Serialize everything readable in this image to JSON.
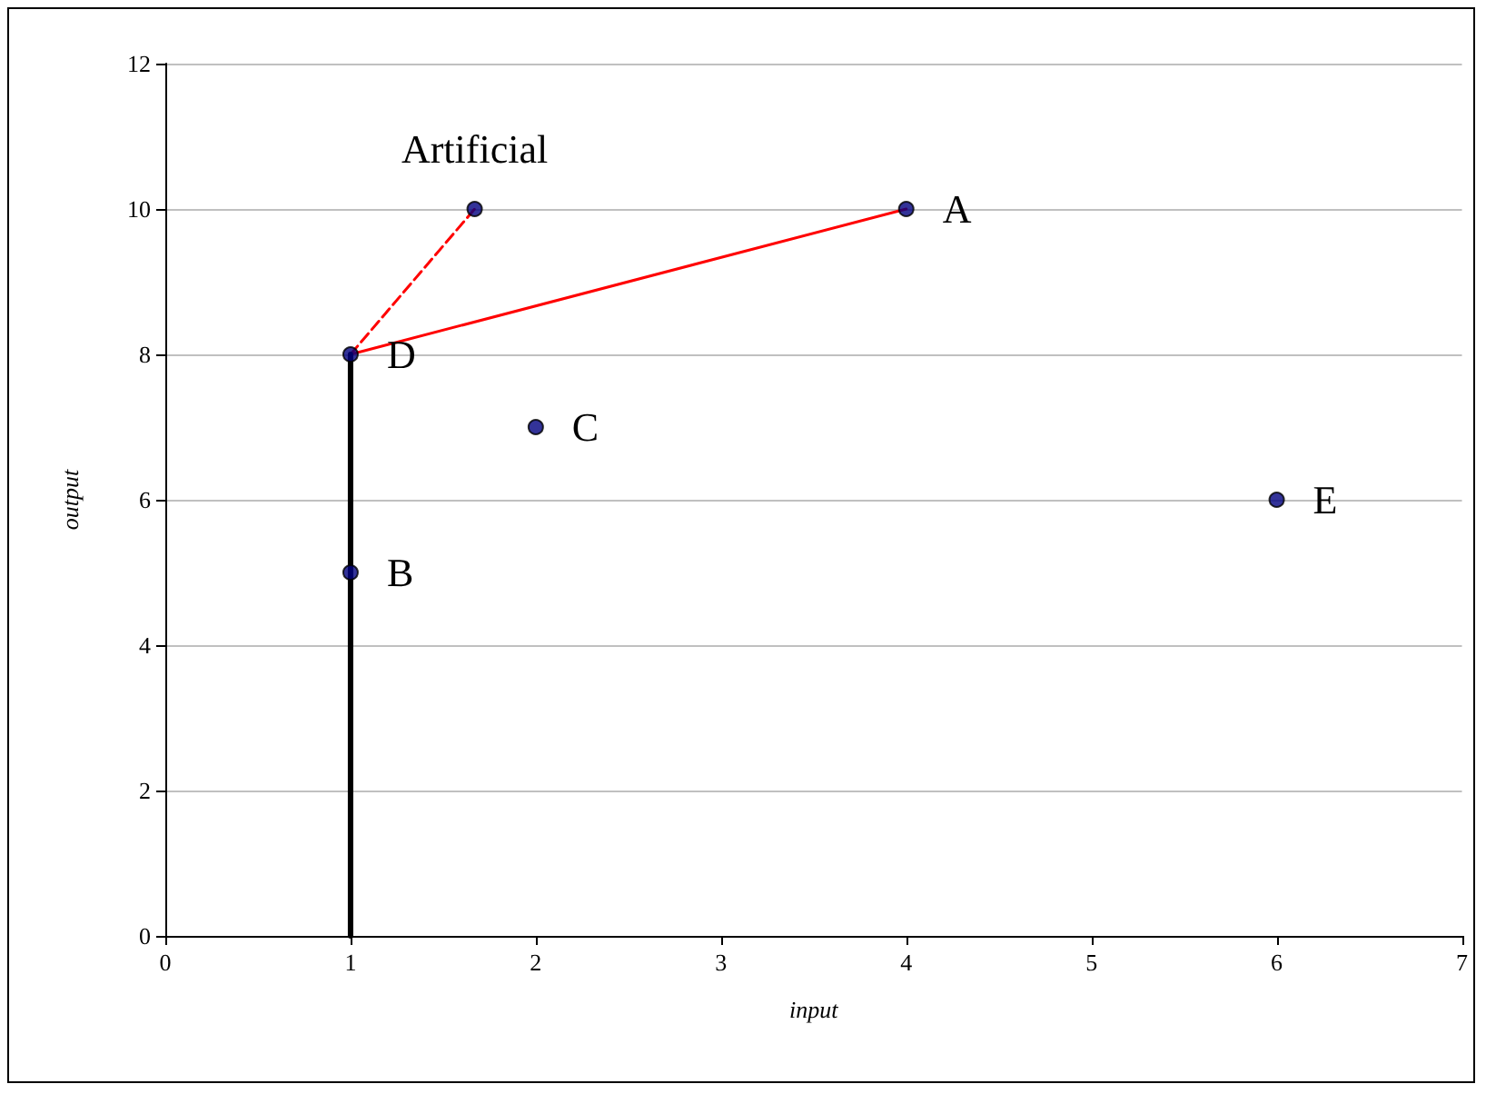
{
  "chart_data": {
    "type": "scatter",
    "xlabel": "input",
    "ylabel": "output",
    "series": [
      {
        "color": "#000080",
        "x": [
          1,
          1,
          2,
          4,
          6,
          1.67
        ],
        "values": [
          8,
          5,
          7,
          10,
          6,
          10
        ],
        "marker": "circle"
      },
      {
        "type": "line",
        "color": "#ff0000",
        "x": [
          1,
          4
        ],
        "values": [
          8,
          10
        ],
        "line_style": "solid",
        "marker": "none"
      },
      {
        "type": "line",
        "color": "#ff0000",
        "x": [
          1,
          1.67
        ],
        "values": [
          8,
          10
        ],
        "line_style": "dashed",
        "marker": "none"
      },
      {
        "type": "line",
        "color": "#000000",
        "x": [
          1,
          1
        ],
        "values": [
          0,
          8
        ],
        "line_style": "solid",
        "marker": "none"
      }
    ],
    "annotations": [
      {
        "text": "A",
        "x": 4,
        "y": 10
      },
      {
        "text": "B",
        "x": 1,
        "y": 5
      },
      {
        "text": "C",
        "x": 2,
        "y": 7
      },
      {
        "text": "D",
        "x": 1,
        "y": 8
      },
      {
        "text": "E",
        "x": 6,
        "y": 6
      },
      {
        "text": "Artificial",
        "x": 1.67,
        "y": 10
      }
    ],
    "xlim": [
      0,
      7
    ],
    "xticks": [
      0,
      1,
      2,
      3,
      4,
      5,
      6,
      7
    ],
    "ylim": [
      0,
      12
    ],
    "yticks": [
      0,
      2,
      4,
      6,
      8,
      10,
      12
    ],
    "grid": "y"
  }
}
